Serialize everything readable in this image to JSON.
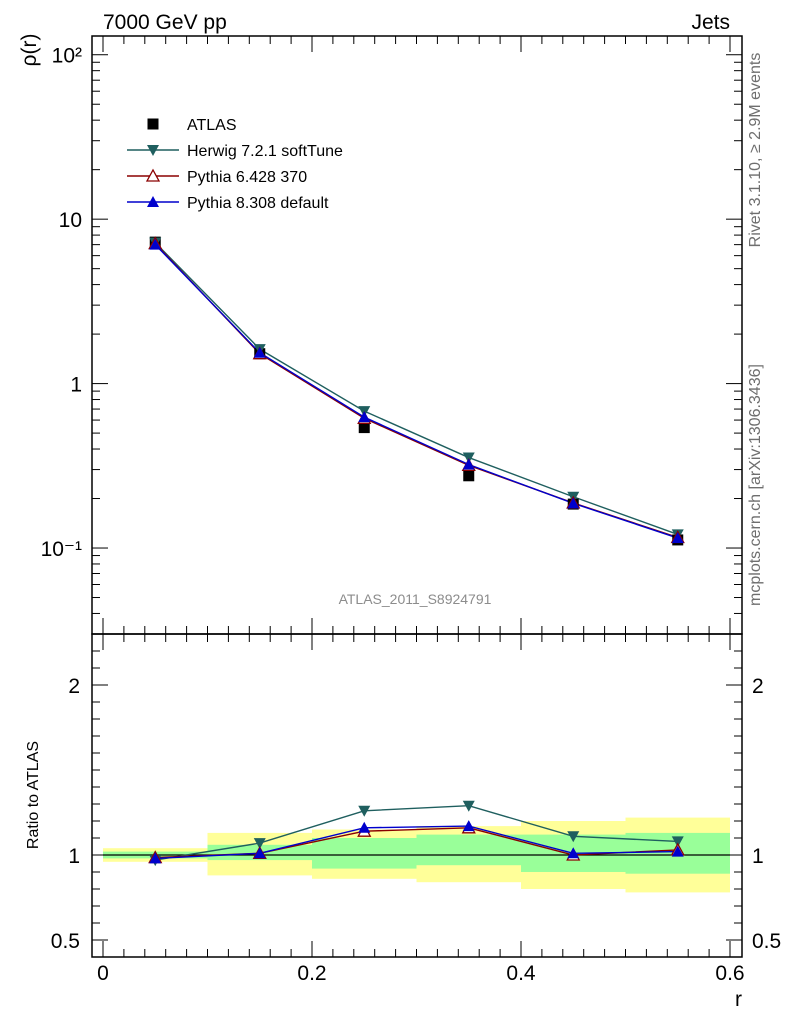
{
  "header": {
    "left": "7000 GeV pp",
    "right": "Jets"
  },
  "side_text": {
    "upper": "Rivet 3.1.10, ≥ 2.9M events",
    "lower": "mcplots.cern.ch [arXiv:1306.3436]"
  },
  "analysis_label": "ATLAS_2011_S8924791",
  "colors": {
    "data": "#000000",
    "herwig": "#1f5f5f",
    "pythia6": "#8b0000",
    "pythia8": "#0000cc",
    "band_inner": "#99ff99",
    "band_outer": "#ffff99"
  },
  "chart_data": [
    {
      "type": "line",
      "panel": "main",
      "xlabel": "",
      "ylabel": "ρ(r)",
      "yscale": "log",
      "xlim": [
        0,
        0.6
      ],
      "ylim": [
        0.03,
        130
      ],
      "y_tick_labels": [
        "10⁻¹",
        "1",
        "10",
        "10²"
      ],
      "x": [
        0.05,
        0.15,
        0.25,
        0.35,
        0.45,
        0.55
      ],
      "legend_position": "upper-left",
      "series": [
        {
          "name": "ATLAS",
          "marker": "square",
          "values": [
            7.25,
            1.52,
            0.54,
            0.275,
            0.185,
            0.112
          ]
        },
        {
          "name": "Herwig 7.2.1 softTune",
          "marker": "triangle-down",
          "values": [
            7.2,
            1.62,
            0.68,
            0.355,
            0.205,
            0.121
          ]
        },
        {
          "name": "Pythia 6.428 370",
          "marker": "triangle-up-open",
          "values": [
            7.1,
            1.52,
            0.615,
            0.318,
            0.188,
            0.116
          ]
        },
        {
          "name": "Pythia 8.308 default",
          "marker": "triangle-up",
          "values": [
            7.0,
            1.54,
            0.625,
            0.322,
            0.187,
            0.115
          ]
        }
      ]
    },
    {
      "type": "line",
      "panel": "ratio",
      "xlabel": "r",
      "ylabel": "Ratio to ATLAS",
      "xlim": [
        0,
        0.6
      ],
      "ylim": [
        0.4,
        2.3
      ],
      "x_tick_labels": [
        "0",
        "0.2",
        "0.4",
        "0.6"
      ],
      "y_tick_labels": [
        "0.5",
        "1",
        "2"
      ],
      "x": [
        0.05,
        0.15,
        0.25,
        0.35,
        0.45,
        0.55
      ],
      "bands": {
        "edges": [
          0,
          0.1,
          0.2,
          0.3,
          0.4,
          0.5,
          0.6
        ],
        "inner_low": [
          0.98,
          0.97,
          0.92,
          0.94,
          0.9,
          0.89
        ],
        "inner_high": [
          1.02,
          1.06,
          1.1,
          1.12,
          1.12,
          1.13
        ],
        "outer_low": [
          0.96,
          0.88,
          0.86,
          0.84,
          0.8,
          0.78
        ],
        "outer_high": [
          1.04,
          1.13,
          1.15,
          1.17,
          1.2,
          1.22
        ]
      },
      "series": [
        {
          "name": "Herwig 7.2.1 softTune",
          "values": [
            0.97,
            1.07,
            1.26,
            1.29,
            1.11,
            1.08
          ]
        },
        {
          "name": "Pythia 6.428 370",
          "values": [
            0.985,
            1.01,
            1.14,
            1.16,
            1.0,
            1.03
          ]
        },
        {
          "name": "Pythia 8.308 default",
          "values": [
            0.98,
            1.01,
            1.16,
            1.17,
            1.01,
            1.02
          ]
        }
      ]
    }
  ]
}
